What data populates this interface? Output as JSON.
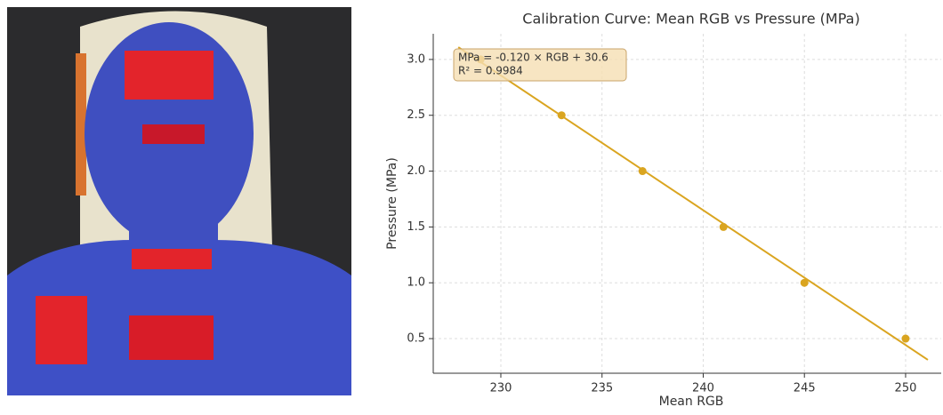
{
  "chart_data": {
    "type": "scatter",
    "title": "Calibration Curve: Mean RGB vs Pressure (MPa)",
    "xlabel": "Mean RGB",
    "ylabel": "Pressure (MPa)",
    "annotation": [
      "MPa = -0.120 × RGB + 30.6",
      "R² = 0.9984"
    ],
    "series": [
      {
        "type": "scatter",
        "color": "#daa520",
        "x": [
          229,
          233,
          237,
          241,
          245,
          250
        ],
        "values": [
          3.0,
          2.5,
          2.0,
          1.5,
          1.0,
          0.5
        ]
      },
      {
        "type": "line",
        "color": "#daa520",
        "x": [
          227.9,
          251.1
        ],
        "values": [
          3.11,
          0.31
        ]
      }
    ],
    "xlim": [
      226.66,
      251.76
    ],
    "xticks": [
      230,
      235,
      240,
      245,
      250
    ],
    "ylim": [
      0.19,
      3.23
    ],
    "yticks": [
      {
        "value": 0.5,
        "label": "0.5"
      },
      {
        "value": 1.0,
        "label": "1.0"
      },
      {
        "value": 1.5,
        "label": "1.5"
      },
      {
        "value": 2.0,
        "label": "2.0"
      },
      {
        "value": 2.5,
        "label": "2.5"
      },
      {
        "value": 3.0,
        "label": "3.0"
      }
    ],
    "grid": true
  }
}
